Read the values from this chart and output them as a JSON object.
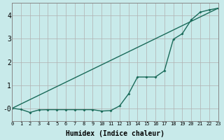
{
  "title": "",
  "xlabel": "Humidex (Indice chaleur)",
  "ylabel": "",
  "background_color": "#c8eaea",
  "grid_color": "#b0b0b0",
  "line_color": "#1a6b5a",
  "x_min": 0,
  "x_max": 23,
  "y_min": -0.55,
  "y_max": 4.55,
  "yticks": [
    0,
    1,
    2,
    3,
    4
  ],
  "ytick_labels": [
    "-0",
    "1",
    "2",
    "3",
    "4"
  ],
  "xticks": [
    0,
    1,
    2,
    3,
    4,
    5,
    6,
    7,
    8,
    9,
    10,
    11,
    12,
    13,
    14,
    15,
    16,
    17,
    18,
    19,
    20,
    21,
    22,
    23
  ],
  "line1_x": [
    0,
    1,
    2,
    3,
    4,
    5,
    6,
    7,
    8,
    9,
    10,
    11,
    12,
    13,
    14,
    15,
    16,
    17,
    18,
    19,
    20,
    21,
    22,
    23
  ],
  "line1_y": [
    0.0,
    -0.05,
    -0.18,
    -0.07,
    -0.06,
    -0.06,
    -0.06,
    -0.06,
    -0.06,
    -0.06,
    -0.12,
    -0.1,
    0.1,
    0.62,
    1.35,
    1.35,
    1.35,
    1.62,
    2.98,
    3.22,
    3.82,
    4.15,
    4.25,
    4.32
  ],
  "line2_x": [
    0,
    23
  ],
  "line2_y": [
    0.0,
    4.32
  ]
}
